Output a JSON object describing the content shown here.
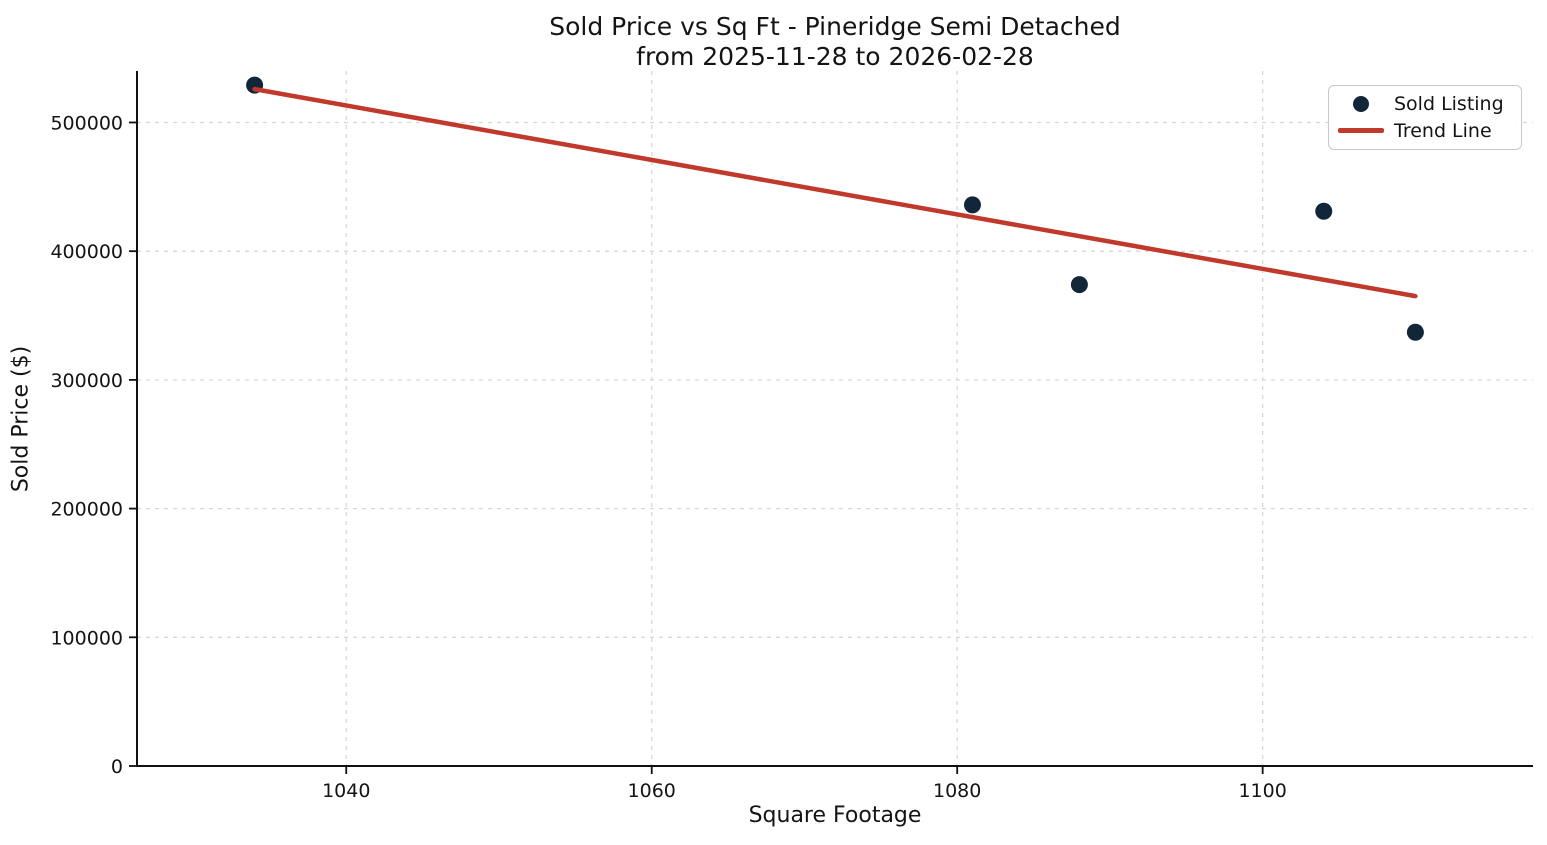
{
  "chart_data": {
    "type": "scatter",
    "title": "Sold Price vs Sq Ft - Pineridge Semi Detached\nfrom 2025-11-28 to 2026-02-28",
    "title_line1": "Sold Price vs Sq Ft - Pineridge Semi Detached",
    "title_line2": "from 2025-11-28 to 2026-02-28",
    "xlabel": "Square Footage",
    "ylabel": "Sold Price ($)",
    "xlim": [
      1026.3,
      1117.7
    ],
    "ylim": [
      0,
      540000
    ],
    "xticks": [
      1040,
      1060,
      1080,
      1100
    ],
    "yticks": [
      0,
      100000,
      200000,
      300000,
      400000,
      500000
    ],
    "grid": true,
    "legend_position": "upper-right",
    "series": [
      {
        "name": "Sold Listing",
        "type": "scatter",
        "color": "#12263a",
        "points": [
          {
            "sqft": 1034,
            "price": 529000
          },
          {
            "sqft": 1081,
            "price": 436000
          },
          {
            "sqft": 1088,
            "price": 374000
          },
          {
            "sqft": 1104,
            "price": 431000
          },
          {
            "sqft": 1110,
            "price": 337000
          }
        ]
      },
      {
        "name": "Trend Line",
        "type": "line",
        "color": "#c0392b",
        "points": [
          {
            "sqft": 1034,
            "price": 525900
          },
          {
            "sqft": 1110,
            "price": 365100
          }
        ]
      }
    ],
    "style": {
      "background": "#ffffff",
      "grid_color": "#d8d8d8",
      "axis_color": "#111111",
      "text_color": "#141414"
    }
  }
}
